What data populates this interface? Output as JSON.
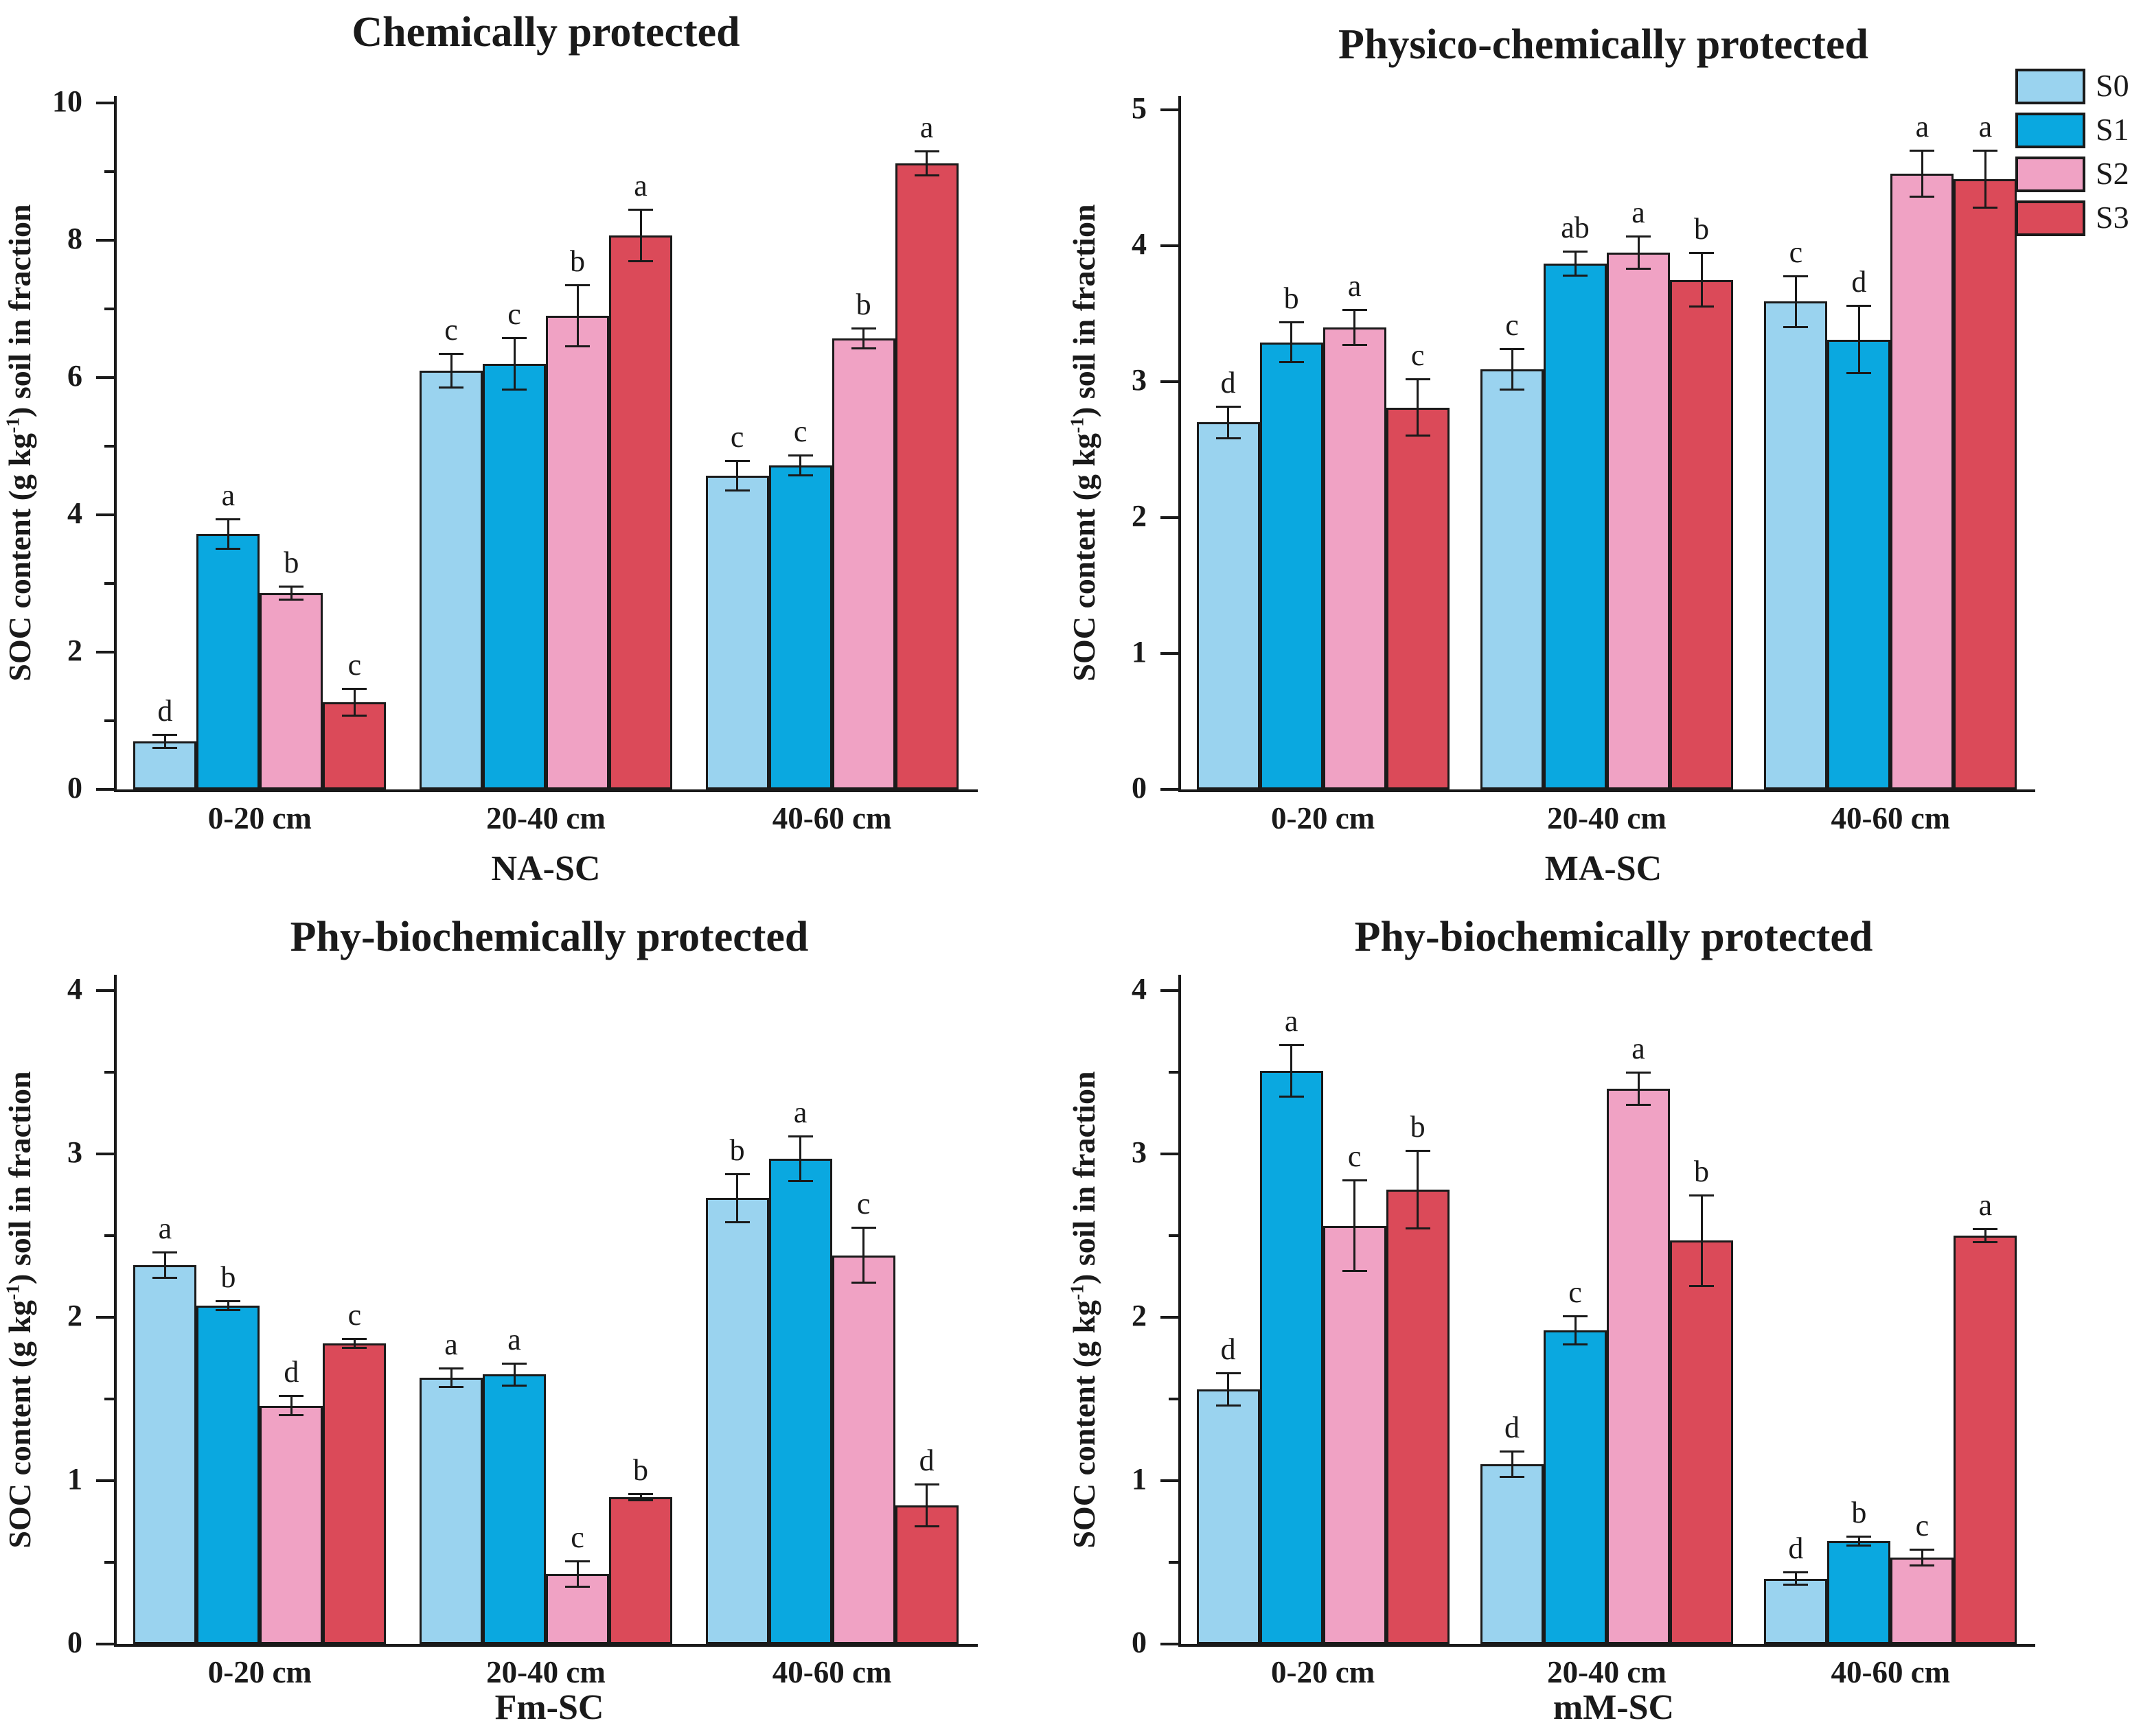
{
  "figure": {
    "background": "#ffffff",
    "axis_color": "#1a1a1a",
    "legend": {
      "position": "top-right",
      "entries": [
        {
          "label": "S0",
          "color": "#9AD3EF"
        },
        {
          "label": "S1",
          "color": "#0AA8E0"
        },
        {
          "label": "S2",
          "color": "#F0A2C4"
        },
        {
          "label": "S3",
          "color": "#DB4A59"
        }
      ]
    }
  },
  "ylabel_parts": {
    "prefix": "SOC content (g kg",
    "superscript": "-1",
    "suffix": ")  soil in fraction"
  },
  "chart_data": [
    {
      "type": "bar",
      "title": "Chemically protected",
      "xlabel": "NA-SC",
      "ylabel": "SOC content (g kg-1) soil in fraction",
      "ylim": [
        0,
        10
      ],
      "ytick_major": 2,
      "ytick_minor": 1,
      "grid": false,
      "legend_position": "none",
      "categories": [
        "0-20 cm",
        "20-40 cm",
        "40-60 cm"
      ],
      "series": [
        {
          "name": "S0",
          "color": "#9AD3EF",
          "values": [
            0.7,
            6.1,
            4.57
          ],
          "errors": [
            0.1,
            0.25,
            0.22
          ],
          "letters": [
            "d",
            "c",
            "c"
          ]
        },
        {
          "name": "S1",
          "color": "#0AA8E0",
          "values": [
            3.72,
            6.2,
            4.72
          ],
          "errors": [
            0.22,
            0.38,
            0.15
          ],
          "letters": [
            "a",
            "c",
            "c"
          ]
        },
        {
          "name": "S2",
          "color": "#F0A2C4",
          "values": [
            2.86,
            6.9,
            6.57
          ],
          "errors": [
            0.1,
            0.45,
            0.15
          ],
          "letters": [
            "b",
            "b",
            "b"
          ]
        },
        {
          "name": "S3",
          "color": "#DB4A59",
          "values": [
            1.27,
            8.07,
            9.12
          ],
          "errors": [
            0.2,
            0.38,
            0.18
          ],
          "letters": [
            "c",
            "a",
            "a"
          ]
        }
      ]
    },
    {
      "type": "bar",
      "title": "Physico-chemically protected",
      "xlabel": "MA-SC",
      "ylabel": "SOC content (g kg-1) soil in fraction",
      "ylim": [
        0,
        5
      ],
      "ytick_major": 1,
      "ytick_minor": null,
      "grid": false,
      "legend_position": "top-right",
      "categories": [
        "0-20 cm",
        "20-40 cm",
        "40-60 cm"
      ],
      "series": [
        {
          "name": "S0",
          "color": "#9AD3EF",
          "values": [
            2.7,
            3.09,
            3.59
          ],
          "errors": [
            0.12,
            0.15,
            0.19
          ],
          "letters": [
            "d",
            "c",
            "c"
          ]
        },
        {
          "name": "S1",
          "color": "#0AA8E0",
          "values": [
            3.29,
            3.87,
            3.31
          ],
          "errors": [
            0.15,
            0.09,
            0.25
          ],
          "letters": [
            "b",
            "ab",
            "d"
          ]
        },
        {
          "name": "S2",
          "color": "#F0A2C4",
          "values": [
            3.4,
            3.95,
            4.53
          ],
          "errors": [
            0.13,
            0.12,
            0.17
          ],
          "letters": [
            "a",
            "a",
            "a"
          ]
        },
        {
          "name": "S3",
          "color": "#DB4A59",
          "values": [
            2.81,
            3.75,
            4.49
          ],
          "errors": [
            0.21,
            0.2,
            0.21
          ],
          "letters": [
            "c",
            "b",
            "a"
          ]
        }
      ]
    },
    {
      "type": "bar",
      "title": "Phy-biochemically protected",
      "xlabel": "Fm-SC",
      "ylabel": "SOC content (g kg-1) soil in fraction",
      "ylim": [
        0,
        4
      ],
      "ytick_major": 1,
      "ytick_minor": 0.5,
      "grid": false,
      "legend_position": "none",
      "categories": [
        "0-20 cm",
        "20-40 cm",
        "40-60 cm"
      ],
      "series": [
        {
          "name": "S0",
          "color": "#9AD3EF",
          "values": [
            2.32,
            1.63,
            2.73
          ],
          "errors": [
            0.08,
            0.06,
            0.15
          ],
          "letters": [
            "a",
            "a",
            "b"
          ]
        },
        {
          "name": "S1",
          "color": "#0AA8E0",
          "values": [
            2.07,
            1.65,
            2.97
          ],
          "errors": [
            0.03,
            0.07,
            0.14
          ],
          "letters": [
            "b",
            "a",
            "a"
          ]
        },
        {
          "name": "S2",
          "color": "#F0A2C4",
          "values": [
            1.46,
            0.43,
            2.38
          ],
          "errors": [
            0.06,
            0.08,
            0.17
          ],
          "letters": [
            "d",
            "c",
            "c"
          ]
        },
        {
          "name": "S3",
          "color": "#DB4A59",
          "values": [
            1.84,
            0.9,
            0.85
          ],
          "errors": [
            0.03,
            0.02,
            0.13
          ],
          "letters": [
            "c",
            "b",
            "d"
          ]
        }
      ]
    },
    {
      "type": "bar",
      "title": "Phy-biochemically protected",
      "xlabel": "mM-SC",
      "ylabel": "SOC content (g kg-1) soil in fraction",
      "ylim": [
        0,
        4
      ],
      "ytick_major": 1,
      "ytick_minor": 0.5,
      "grid": false,
      "legend_position": "none",
      "categories": [
        "0-20 cm",
        "20-40 cm",
        "40-60 cm"
      ],
      "series": [
        {
          "name": "S0",
          "color": "#9AD3EF",
          "values": [
            1.56,
            1.1,
            0.4
          ],
          "errors": [
            0.1,
            0.08,
            0.04
          ],
          "letters": [
            "d",
            "d",
            "d"
          ]
        },
        {
          "name": "S1",
          "color": "#0AA8E0",
          "values": [
            3.51,
            1.92,
            0.63
          ],
          "errors": [
            0.16,
            0.09,
            0.03
          ],
          "letters": [
            "a",
            "c",
            "b"
          ]
        },
        {
          "name": "S2",
          "color": "#F0A2C4",
          "values": [
            2.56,
            3.4,
            0.53
          ],
          "errors": [
            0.28,
            0.1,
            0.05
          ],
          "letters": [
            "c",
            "a",
            "c"
          ]
        },
        {
          "name": "S3",
          "color": "#DB4A59",
          "values": [
            2.78,
            2.47,
            2.5
          ],
          "errors": [
            0.24,
            0.28,
            0.04
          ],
          "letters": [
            "b",
            "b",
            "a"
          ]
        }
      ]
    }
  ]
}
